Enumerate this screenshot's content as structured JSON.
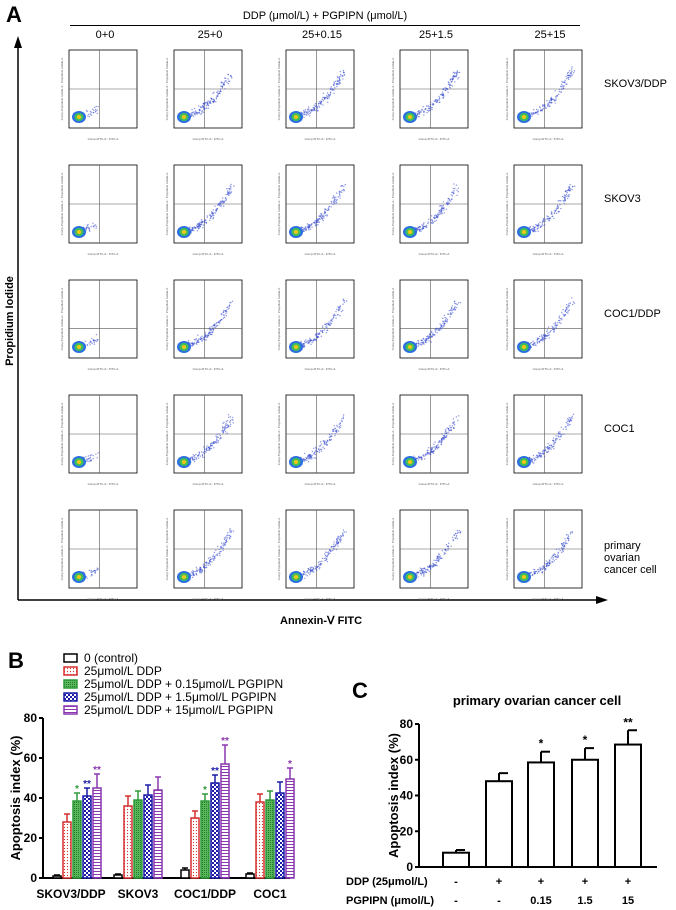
{
  "panel_a": {
    "letter": "A",
    "title": "DDP (μmol/L) + PGPIPN (μmol/L)",
    "columns": [
      "0+0",
      "25+0",
      "25+0.15",
      "25+1.5",
      "25+15"
    ],
    "rows": [
      "SKOV3/DDP",
      "SKOV3",
      "COC1/DDP",
      "COC1",
      "primary ovarian cancer cell"
    ],
    "y_axis_label": "Propidium Iodide",
    "x_axis_label": "Annexin-Ⅴ FITC",
    "plot_x_label": "Comp-FITC-A:: FITC-A",
    "plot_y_label": "Comp-Propidium Iodide-A:: Propidium Iodide-A"
  },
  "chart_data": [
    {
      "panel": "B",
      "type": "bar",
      "ylabel": "Apoptosis index (%)",
      "ylim": [
        0,
        80
      ],
      "yticks": [
        0,
        20,
        40,
        60,
        80
      ],
      "categories": [
        "SKOV3/DDP",
        "SKOV3",
        "COC1/DDP",
        "COC1"
      ],
      "legend_placement": "top",
      "series": [
        {
          "name": "0 (control)",
          "color": "#000000",
          "pattern": "none",
          "values": [
            1,
            1.5,
            4,
            2
          ],
          "errors": [
            0.5,
            0.5,
            1,
            0.5
          ],
          "sig": [
            "",
            "",
            "",
            ""
          ]
        },
        {
          "name": "25μmol/L DDP",
          "color": "#d62f2f",
          "pattern": "dots",
          "values": [
            28,
            36,
            30,
            38
          ],
          "errors": [
            4,
            5,
            3.5,
            4
          ],
          "sig": [
            "",
            "",
            "",
            ""
          ]
        },
        {
          "name": "25μmol/L DDP + 0.15μmol/L PGPIPN",
          "color": "#2e9a3a",
          "pattern": "dense",
          "values": [
            38.5,
            39,
            38.5,
            39
          ],
          "errors": [
            4,
            4.5,
            3.5,
            4.5
          ],
          "sig": [
            "*",
            "",
            "*",
            ""
          ]
        },
        {
          "name": "25μmol/L DDP + 1.5μmol/L PGPIPN",
          "color": "#1c1ca8",
          "pattern": "checker",
          "values": [
            41,
            41.5,
            47.5,
            42.5
          ],
          "errors": [
            4,
            5,
            4,
            5.5
          ],
          "sig": [
            "**",
            "",
            "**",
            ""
          ]
        },
        {
          "name": "25μmol/L DDP + 15μmol/L PGPIPN",
          "color": "#8a37b0",
          "pattern": "stripes",
          "values": [
            45,
            44,
            57,
            49.5
          ],
          "errors": [
            7,
            6.5,
            9.5,
            5.5
          ],
          "sig": [
            "**",
            "",
            "**",
            "*"
          ]
        }
      ]
    },
    {
      "panel": "C",
      "type": "bar",
      "title": "primary ovarian cancer cell",
      "ylabel": "Apoptosis index (%)",
      "ylim": [
        0,
        80
      ],
      "yticks": [
        0,
        20,
        40,
        60,
        80
      ],
      "row_labels": [
        "DDP (25μmol/L)",
        "PGPIPN (μmol/L)"
      ],
      "ddp": [
        "-",
        "+",
        "+",
        "+",
        "+"
      ],
      "pgpipn": [
        "-",
        "-",
        "0.15",
        "1.5",
        "15"
      ],
      "values": [
        8,
        48,
        58.5,
        60,
        68.5
      ],
      "errors": [
        1.5,
        4.5,
        6,
        6.5,
        8
      ],
      "sig": [
        "",
        "",
        "*",
        "*",
        "**"
      ]
    }
  ],
  "panel_b": {
    "letter": "B"
  },
  "panel_c": {
    "letter": "C"
  }
}
